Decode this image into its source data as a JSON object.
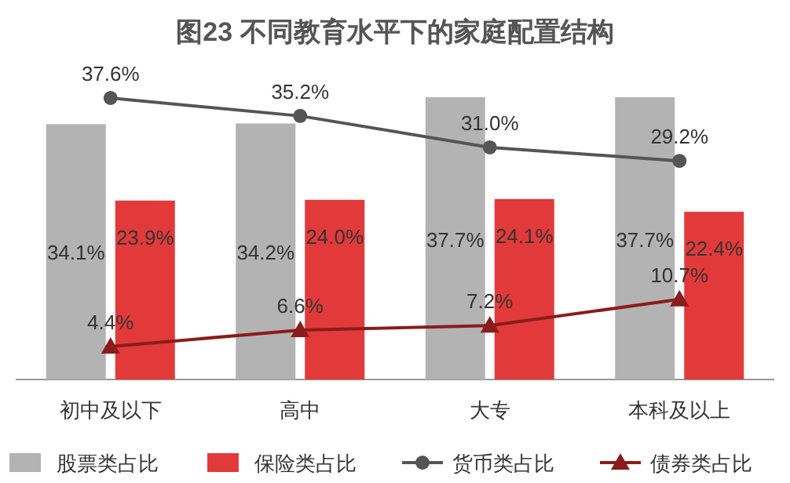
{
  "chart_data": {
    "type": "bar",
    "title": "图23 不同教育水平下的家庭配置结构",
    "categories": [
      "初中及以下",
      "高中",
      "大专",
      "本科及以上"
    ],
    "series": [
      {
        "name": "股票类占比",
        "color": "#b3b3b3",
        "values": [
          34.1,
          34.2,
          37.7,
          37.7
        ],
        "value_labels": [
          "34.1%",
          "34.2%",
          "37.7%",
          "37.7%"
        ]
      },
      {
        "name": "保险类占比",
        "color": "#e23a3a",
        "values": [
          23.9,
          24.0,
          24.1,
          22.4
        ],
        "value_labels": [
          "23.9%",
          "24.0%",
          "24.1%",
          "22.4%"
        ]
      },
      {
        "name": "货币类占比",
        "type": "line",
        "color": "#555555",
        "marker": "circle",
        "values": [
          37.6,
          35.2,
          31.0,
          29.2
        ],
        "value_labels": [
          "37.6%",
          "35.2%",
          "31.0%",
          "29.2%"
        ]
      },
      {
        "name": "债券类占比",
        "type": "line",
        "color": "#8b1c1c",
        "marker": "triangle",
        "values": [
          4.4,
          6.6,
          7.2,
          10.7
        ],
        "value_labels": [
          "4.4%",
          "6.6%",
          "7.2%",
          "10.7%"
        ]
      }
    ],
    "legend": "bottom",
    "grid": false
  }
}
